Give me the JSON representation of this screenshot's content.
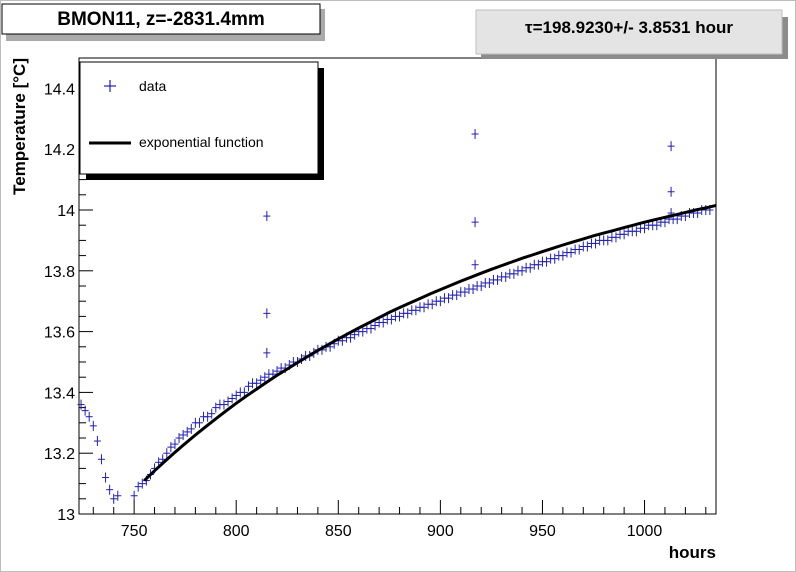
{
  "header": {
    "title": "BMON11, z=-2831.4mm",
    "tau_text": "τ=198.9230+/- 3.8531 hour"
  },
  "legend": {
    "data_label": "data",
    "fit_label": "exponential function"
  },
  "chart_data": {
    "type": "scatter",
    "title": "BMON11, z=-2831.4mm",
    "xlabel": "hours",
    "ylabel": "Temperature [°C]",
    "xlim": [
      723,
      1035
    ],
    "ylim": [
      13.0,
      14.5
    ],
    "xticks": [
      750,
      800,
      850,
      900,
      950,
      1000
    ],
    "yticks": [
      13,
      13.2,
      13.4,
      13.6,
      13.8,
      14,
      14.2,
      14.4
    ],
    "ytick_labels": [
      "13",
      "13.2",
      "13.4",
      "13.6",
      "13.8",
      "14",
      "14.2",
      "14.4"
    ],
    "grid": false,
    "legend_position": "top-left",
    "annotation": "τ=198.9230+/- 3.8531 hour",
    "colors": {
      "data": "#1f1fb4",
      "fit": "#000000",
      "frame": "#000000",
      "pad": "#d9d9d9"
    },
    "series": [
      {
        "name": "data",
        "kind": "points",
        "x": [
          724,
          726,
          728,
          730,
          732,
          734,
          736,
          738,
          740,
          742,
          750,
          752,
          754,
          756,
          758,
          760,
          762,
          764,
          766,
          768,
          770,
          772,
          774,
          776,
          778,
          780,
          782,
          784,
          786,
          788,
          790,
          792,
          794,
          796,
          798,
          800,
          802,
          804,
          806,
          808,
          810,
          812,
          814,
          816,
          818,
          820,
          822,
          824,
          826,
          828,
          830,
          832,
          834,
          836,
          838,
          840,
          842,
          844,
          846,
          848,
          850,
          852,
          854,
          856,
          858,
          860,
          862,
          864,
          866,
          868,
          870,
          872,
          874,
          876,
          878,
          880,
          882,
          884,
          886,
          888,
          890,
          892,
          894,
          896,
          898,
          900,
          902,
          904,
          906,
          908,
          910,
          912,
          914,
          916,
          918,
          920,
          922,
          924,
          926,
          928,
          930,
          932,
          934,
          936,
          938,
          940,
          942,
          944,
          946,
          948,
          950,
          952,
          954,
          956,
          958,
          960,
          962,
          964,
          966,
          968,
          970,
          972,
          974,
          976,
          978,
          980,
          982,
          984,
          986,
          988,
          990,
          992,
          994,
          996,
          998,
          1000,
          1002,
          1004,
          1006,
          1008,
          1010,
          1012,
          1014,
          1016,
          1018,
          1020,
          1022,
          1024,
          1026,
          1028,
          1030,
          1032,
          815,
          815,
          815,
          917,
          917,
          917,
          1013,
          1013,
          1013
        ],
        "y": [
          13.36,
          13.34,
          13.32,
          13.29,
          13.24,
          13.18,
          13.12,
          13.08,
          13.05,
          13.06,
          13.06,
          13.09,
          13.1,
          13.11,
          13.13,
          13.15,
          13.17,
          13.18,
          13.2,
          13.22,
          13.23,
          13.25,
          13.26,
          13.27,
          13.28,
          13.3,
          13.3,
          13.32,
          13.32,
          13.33,
          13.35,
          13.36,
          13.36,
          13.37,
          13.38,
          13.39,
          13.4,
          13.4,
          13.42,
          13.43,
          13.43,
          13.44,
          13.45,
          13.46,
          13.46,
          13.47,
          13.48,
          13.48,
          13.49,
          13.5,
          13.5,
          13.51,
          13.52,
          13.52,
          13.53,
          13.54,
          13.54,
          13.55,
          13.55,
          13.56,
          13.57,
          13.57,
          13.58,
          13.58,
          13.59,
          13.6,
          13.6,
          13.61,
          13.61,
          13.62,
          13.63,
          13.63,
          13.64,
          13.64,
          13.65,
          13.65,
          13.66,
          13.66,
          13.67,
          13.67,
          13.68,
          13.68,
          13.69,
          13.69,
          13.7,
          13.7,
          13.71,
          13.71,
          13.72,
          13.72,
          13.73,
          13.73,
          13.74,
          13.74,
          13.75,
          13.75,
          13.76,
          13.76,
          13.77,
          13.77,
          13.78,
          13.78,
          13.79,
          13.79,
          13.8,
          13.8,
          13.81,
          13.81,
          13.82,
          13.82,
          13.83,
          13.83,
          13.84,
          13.84,
          13.85,
          13.85,
          13.86,
          13.86,
          13.87,
          13.87,
          13.88,
          13.88,
          13.89,
          13.89,
          13.9,
          13.9,
          13.9,
          13.91,
          13.91,
          13.92,
          13.92,
          13.93,
          13.93,
          13.93,
          13.94,
          13.94,
          13.95,
          13.95,
          13.95,
          13.96,
          13.96,
          13.97,
          13.97,
          13.97,
          13.98,
          13.98,
          13.99,
          13.99,
          13.99,
          14.0,
          14.0,
          14.0,
          13.53,
          13.66,
          13.98,
          13.82,
          13.96,
          14.25,
          14.06,
          14.21,
          13.99
        ]
      },
      {
        "name": "exponential function",
        "kind": "line",
        "x": [
          755,
          760,
          765,
          770,
          775,
          780,
          785,
          790,
          795,
          800,
          805,
          810,
          815,
          820,
          825,
          830,
          835,
          840,
          845,
          850,
          855,
          860,
          865,
          870,
          875,
          880,
          885,
          890,
          895,
          900,
          905,
          910,
          915,
          920,
          925,
          930,
          935,
          940,
          945,
          950,
          955,
          960,
          965,
          970,
          975,
          980,
          985,
          990,
          995,
          1000,
          1005,
          1010,
          1015,
          1020,
          1025,
          1030,
          1035
        ],
        "y": [
          13.11,
          13.142,
          13.173,
          13.203,
          13.232,
          13.26,
          13.287,
          13.313,
          13.339,
          13.364,
          13.388,
          13.411,
          13.434,
          13.456,
          13.477,
          13.498,
          13.518,
          13.538,
          13.557,
          13.576,
          13.594,
          13.612,
          13.629,
          13.646,
          13.663,
          13.679,
          13.694,
          13.709,
          13.724,
          13.738,
          13.752,
          13.766,
          13.779,
          13.792,
          13.805,
          13.817,
          13.829,
          13.841,
          13.852,
          13.863,
          13.874,
          13.885,
          13.895,
          13.905,
          13.915,
          13.924,
          13.933,
          13.942,
          13.951,
          13.96,
          13.968,
          13.976,
          13.984,
          13.992,
          14.0,
          14.007,
          14.015
        ]
      }
    ]
  }
}
